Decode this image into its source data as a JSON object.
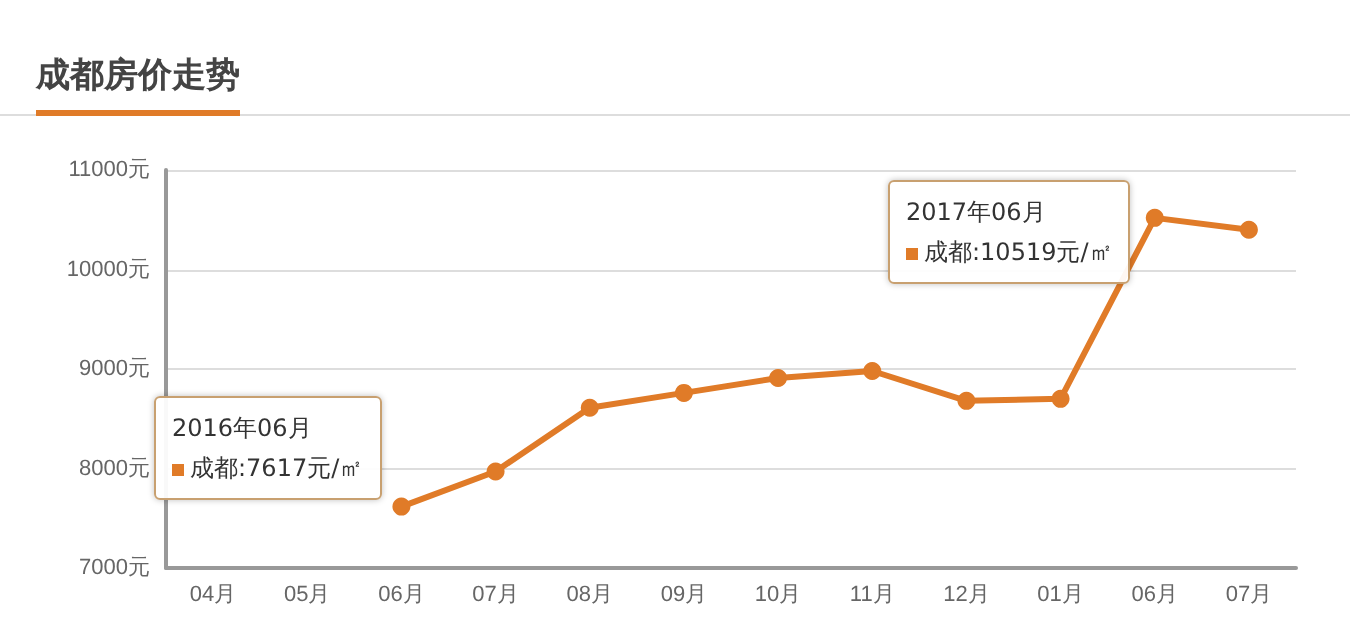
{
  "chart_data": {
    "type": "line",
    "title": "成都房价走势",
    "categories": [
      "04月",
      "05月",
      "06月",
      "07月",
      "08月",
      "09月",
      "10月",
      "11月",
      "12月",
      "01月",
      "06月",
      "07月"
    ],
    "series": [
      {
        "color": "#e07b28",
        "values": [
          null,
          null,
          7617,
          7970,
          8610,
          8760,
          8910,
          8980,
          8680,
          8700,
          10519,
          10400
        ]
      }
    ],
    "ylim": [
      7000,
      11000
    ],
    "yticks": [
      {
        "value": 7000,
        "label": "7000元"
      },
      {
        "value": 8000,
        "label": "8000元"
      },
      {
        "value": 9000,
        "label": "9000元"
      },
      {
        "value": 10000,
        "label": "10000元"
      },
      {
        "value": 11000,
        "label": "11000元"
      }
    ],
    "grid": "y",
    "marker": "circle",
    "line_style": "solid",
    "annotations": [
      "2016年06月",
      "成都:7617元/㎡",
      "2017年06月",
      "成都:10519元/㎡"
    ]
  }
}
